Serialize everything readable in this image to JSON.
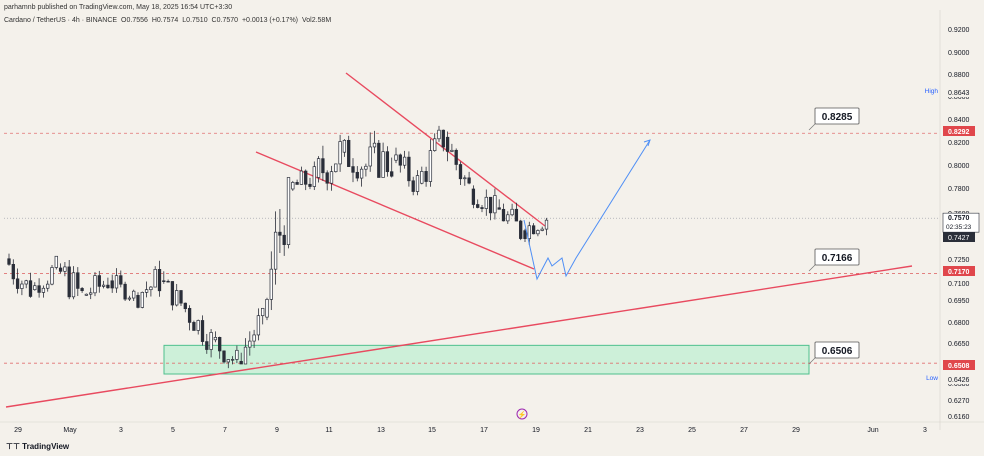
{
  "header": {
    "publisher_line": "parhamnb published on TradingView.com, May 18, 2025 16:54 UTC+3:30",
    "symbol": "Cardano / TetherUS · 4h · BINANCE",
    "open": "O0.7556",
    "high": "H0.7574",
    "low": "L0.7510",
    "close": "C0.7570",
    "change": "+0.0013 (+0.17%)",
    "volume": "Vol2.58M"
  },
  "footer": {
    "brand": "TradingView"
  },
  "price_axis": {
    "ticks": [
      "0.9200",
      "0.9000",
      "0.8800",
      "0.8600",
      "0.8400",
      "0.8200",
      "0.8000",
      "0.7800",
      "0.7600",
      "0.7427",
      "0.7250",
      "0.7100",
      "0.6950",
      "0.6800",
      "0.6650",
      "0.6500",
      "0.6380",
      "0.6270",
      "0.6160"
    ],
    "high_label": "High",
    "high_value": "0.8643",
    "low_label": "Low",
    "low_value": "0.6426",
    "current_price": "0.7570",
    "countdown": "02:35:23",
    "level_tags": [
      "0.8292",
      "0.7170",
      "0.6508"
    ]
  },
  "time_axis": {
    "labels": [
      "29",
      "May",
      "3",
      "5",
      "7",
      "9",
      "11",
      "13",
      "15",
      "17",
      "19",
      "21",
      "23",
      "25",
      "27",
      "29",
      "Jun",
      "3"
    ]
  },
  "annotations": [
    {
      "text": "0.8285"
    },
    {
      "text": "0.7166"
    },
    {
      "text": "0.6506"
    }
  ],
  "colors": {
    "up": "#2a2e39",
    "down": "#2a2e39",
    "trendline": "#e84a5f",
    "projection": "#4f8ff5",
    "zone_fill": "#c9f0d8",
    "zone_stroke": "#3dbb83",
    "dashed": "#e07070",
    "tag_red": "#e0474c",
    "tag_dark": "#2a2e39"
  },
  "chart_data": {
    "type": "candlestick",
    "x_labels": [
      "29",
      "May",
      "3",
      "5",
      "7",
      "9",
      "11",
      "13",
      "15",
      "17",
      "19",
      "21",
      "23",
      "25",
      "27",
      "29",
      "Jun",
      "3"
    ],
    "ylim": [
      0.61,
      0.93
    ],
    "price_series": [
      {
        "t": "Apr 28",
        "o": 0.726,
        "h": 0.731,
        "l": 0.69,
        "c": 0.705
      },
      {
        "t": "Apr 29",
        "o": 0.705,
        "h": 0.728,
        "l": 0.698,
        "c": 0.72
      },
      {
        "t": "Apr 30",
        "o": 0.72,
        "h": 0.725,
        "l": 0.676,
        "c": 0.7
      },
      {
        "t": "May 1",
        "o": 0.7,
        "h": 0.722,
        "l": 0.685,
        "c": 0.712
      },
      {
        "t": "May 2",
        "o": 0.712,
        "h": 0.723,
        "l": 0.695,
        "c": 0.7
      },
      {
        "t": "May 3",
        "o": 0.7,
        "h": 0.732,
        "l": 0.69,
        "c": 0.712
      },
      {
        "t": "May 4",
        "o": 0.712,
        "h": 0.718,
        "l": 0.68,
        "c": 0.69
      },
      {
        "t": "May 5",
        "o": 0.69,
        "h": 0.695,
        "l": 0.655,
        "c": 0.668
      },
      {
        "t": "May 6",
        "o": 0.668,
        "h": 0.68,
        "l": 0.643,
        "c": 0.652
      },
      {
        "t": "May 7",
        "o": 0.652,
        "h": 0.69,
        "l": 0.65,
        "c": 0.684
      },
      {
        "t": "May 8",
        "o": 0.684,
        "h": 0.79,
        "l": 0.682,
        "c": 0.78
      },
      {
        "t": "May 9",
        "o": 0.78,
        "h": 0.812,
        "l": 0.77,
        "c": 0.79
      },
      {
        "t": "May 10",
        "o": 0.79,
        "h": 0.845,
        "l": 0.775,
        "c": 0.812
      },
      {
        "t": "May 11",
        "o": 0.812,
        "h": 0.836,
        "l": 0.78,
        "c": 0.8
      },
      {
        "t": "May 12",
        "o": 0.8,
        "h": 0.864,
        "l": 0.79,
        "c": 0.805
      },
      {
        "t": "May 13",
        "o": 0.805,
        "h": 0.825,
        "l": 0.775,
        "c": 0.785
      },
      {
        "t": "May 14",
        "o": 0.785,
        "h": 0.842,
        "l": 0.782,
        "c": 0.825
      },
      {
        "t": "May 15",
        "o": 0.825,
        "h": 0.83,
        "l": 0.772,
        "c": 0.78
      },
      {
        "t": "May 16",
        "o": 0.78,
        "h": 0.786,
        "l": 0.75,
        "c": 0.765
      },
      {
        "t": "May 17",
        "o": 0.765,
        "h": 0.782,
        "l": 0.741,
        "c": 0.748
      },
      {
        "t": "May 18",
        "o": 0.748,
        "h": 0.765,
        "l": 0.735,
        "c": 0.757
      }
    ],
    "horizontal_levels": [
      0.8285,
      0.7166,
      0.6506
    ],
    "support_zone": [
      0.644,
      0.664
    ],
    "current_price": 0.757,
    "legend": "none",
    "grid": false
  }
}
